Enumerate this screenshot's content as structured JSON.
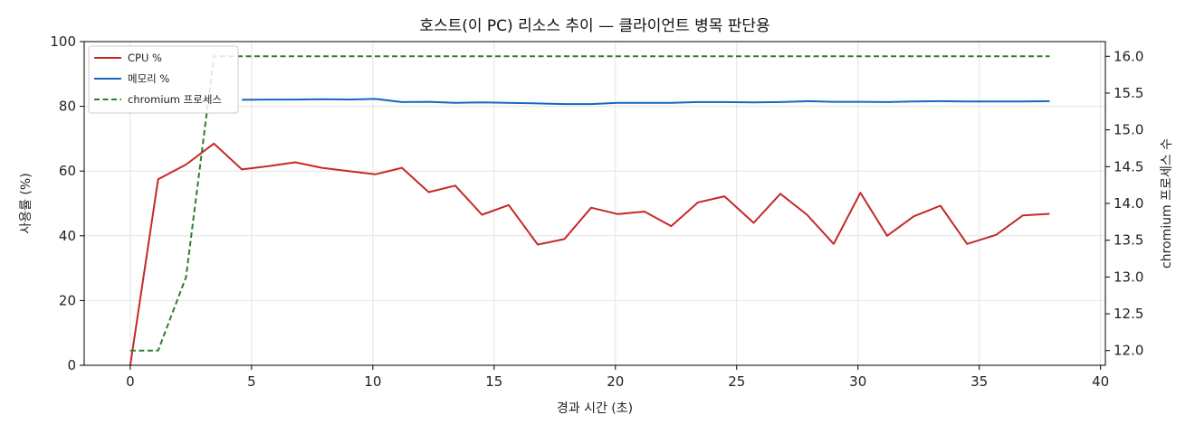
{
  "chart_data": {
    "type": "line",
    "title": "호스트(이 PC) 리소스 추이 — 클라이언트 병목 판단용",
    "xlabel": "경과 시간 (초)",
    "ylabel_left": "사용률 (%)",
    "ylabel_right": "chromium 프로세스 수",
    "xlim": [
      -1.9,
      40.2
    ],
    "ylim_left": [
      0,
      100
    ],
    "ylim_right": [
      11.8,
      16.2
    ],
    "xticks": [
      0,
      5,
      10,
      15,
      20,
      25,
      30,
      35,
      40
    ],
    "yticks_left": [
      0,
      20,
      40,
      60,
      80,
      100
    ],
    "yticks_right": [
      "12.0",
      "12.5",
      "13.0",
      "13.5",
      "14.0",
      "14.5",
      "15.0",
      "15.5",
      "16.0"
    ],
    "grid": true,
    "legend_position": "top-left",
    "series": [
      {
        "name": "CPU %",
        "axis": "left",
        "color": "#c62828",
        "style": "solid",
        "x": [
          0,
          1.15,
          2.3,
          3.45,
          4.6,
          5.7,
          6.8,
          7.9,
          9.0,
          10.1,
          11.2,
          12.3,
          13.4,
          14.5,
          15.6,
          16.8,
          17.9,
          19.0,
          20.1,
          21.2,
          22.3,
          23.4,
          24.5,
          25.7,
          26.8,
          27.9,
          29.0,
          30.1,
          31.2,
          32.3,
          33.4,
          34.5,
          35.7,
          36.8,
          37.9
        ],
        "y": [
          0,
          57.5,
          62,
          68.5,
          60.5,
          61.5,
          62.7,
          61,
          60,
          59,
          61,
          53.5,
          55.5,
          46.5,
          49.5,
          37.3,
          39,
          48.7,
          46.7,
          47.5,
          43,
          50.3,
          52.2,
          44,
          53,
          46.5,
          37.5,
          53.3,
          40,
          46,
          49.3,
          37.5,
          40.3,
          46.3,
          46.8
        ]
      },
      {
        "name": "메모리 %",
        "axis": "left",
        "color": "#1565c0",
        "style": "solid",
        "x": [
          4.6,
          5.7,
          6.8,
          7.9,
          9.0,
          10.1,
          11.2,
          12.3,
          13.4,
          14.5,
          15.6,
          16.8,
          17.9,
          19.0,
          20.1,
          21.2,
          22.3,
          23.4,
          24.5,
          25.7,
          26.8,
          27.9,
          29.0,
          30.1,
          31.2,
          32.3,
          33.4,
          34.5,
          35.7,
          36.8,
          37.9
        ],
        "y": [
          82,
          82.1,
          82.1,
          82.2,
          82.1,
          82.3,
          81.3,
          81.4,
          81.1,
          81.2,
          81.1,
          80.9,
          80.7,
          80.7,
          81.1,
          81.1,
          81.1,
          81.3,
          81.3,
          81.2,
          81.3,
          81.6,
          81.4,
          81.4,
          81.3,
          81.5,
          81.6,
          81.5,
          81.5,
          81.5,
          81.6
        ]
      },
      {
        "name": "chromium 프로세스",
        "axis": "right",
        "color": "#2e7d32",
        "style": "dashed",
        "x": [
          0,
          1.15,
          2.3,
          3.45,
          4.6,
          5.7,
          6.8,
          7.9,
          9.0,
          10.1,
          11.2,
          12.3,
          13.4,
          14.5,
          15.6,
          16.8,
          17.9,
          19.0,
          20.1,
          21.2,
          22.3,
          23.4,
          24.5,
          25.7,
          26.8,
          27.9,
          29.0,
          30.1,
          31.2,
          32.3,
          33.4,
          34.5,
          35.7,
          36.8,
          37.9
        ],
        "y": [
          12,
          12,
          13,
          16,
          16,
          16,
          16,
          16,
          16,
          16,
          16,
          16,
          16,
          16,
          16,
          16,
          16,
          16,
          16,
          16,
          16,
          16,
          16,
          16,
          16,
          16,
          16,
          16,
          16,
          16,
          16,
          16,
          16,
          16,
          16
        ]
      }
    ]
  }
}
